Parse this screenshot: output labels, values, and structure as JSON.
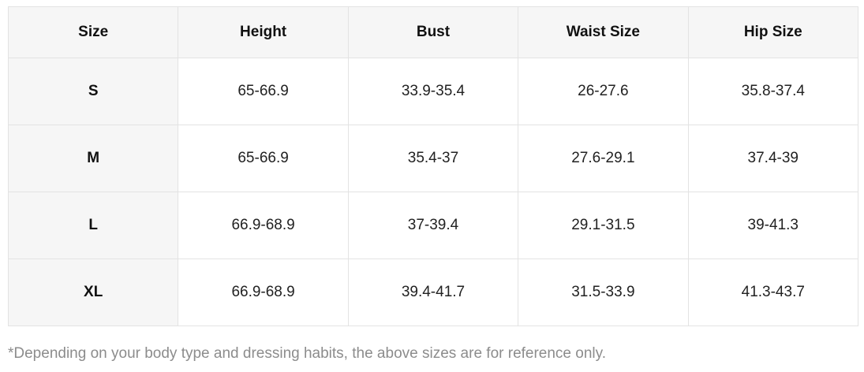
{
  "table": {
    "headers": [
      "Size",
      "Height",
      "Bust",
      "Waist Size",
      "Hip Size"
    ],
    "rows": [
      [
        "S",
        "65-66.9",
        "33.9-35.4",
        "26-27.6",
        "35.8-37.4"
      ],
      [
        "M",
        "65-66.9",
        "35.4-37",
        "27.6-29.1",
        "37.4-39"
      ],
      [
        "L",
        "66.9-68.9",
        "37-39.4",
        "29.1-31.5",
        "39-41.3"
      ],
      [
        "XL",
        "66.9-68.9",
        "39.4-41.7",
        "31.5-33.9",
        "41.3-43.7"
      ]
    ]
  },
  "footnote": "*Depending on your body type and dressing habits, the above sizes are for reference only."
}
